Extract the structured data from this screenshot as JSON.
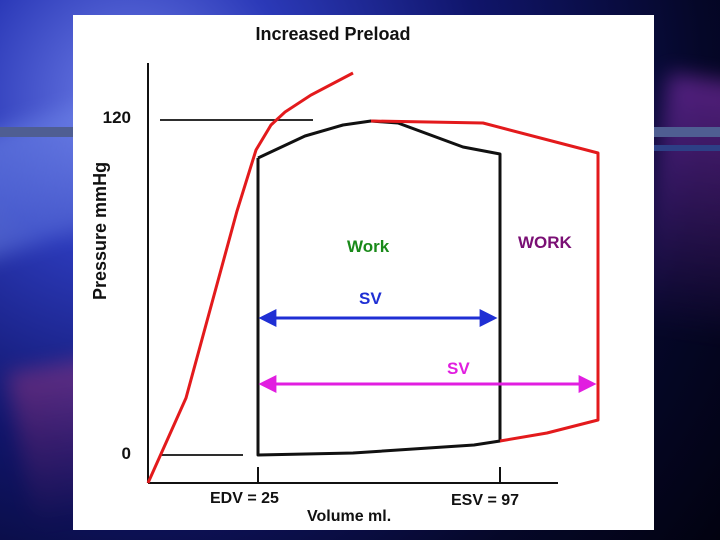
{
  "diagram": {
    "title": "Increased  Preload",
    "y_axis_label": "Pressure  mmHg",
    "x_axis_label": "Volume ml.",
    "y_ticks": {
      "high": "120",
      "low": "0"
    },
    "x_markers": {
      "edv": "EDV = 25",
      "esv": "ESV = 97"
    },
    "regions": {
      "inner_work": "Work",
      "outer_work": "WORK"
    },
    "stroke_volume": {
      "inner": "SV",
      "outer": "SV"
    },
    "colors": {
      "loop_baseline": "#000000",
      "loop_increased_preload": "#e31a1c",
      "work_inner": "#1a8a1a",
      "work_outer": "#7a0f74",
      "sv_inner": "#1f2fd4",
      "sv_outer": "#e11ee0"
    }
  }
}
